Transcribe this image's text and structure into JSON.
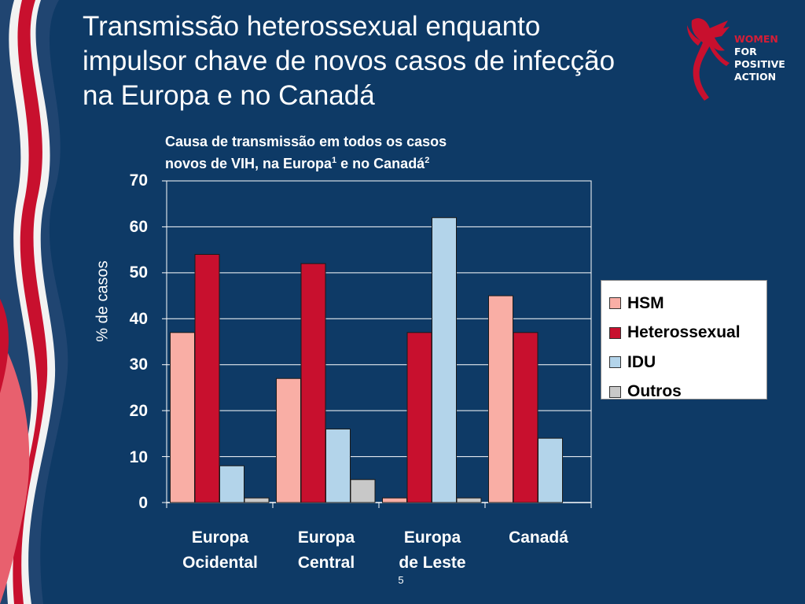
{
  "slide": {
    "title_lines": [
      "Transmissão heterossexual enquanto",
      "impulsor chave de novos casos de infecção",
      "na Europa e no Canadá"
    ],
    "page_number": "5",
    "background_color": "#0e3a66"
  },
  "logo": {
    "lines": [
      "WOMEN",
      "FOR",
      "POSITIVE",
      "ACTION"
    ],
    "accent_color": "#d51d36"
  },
  "chart_data": {
    "type": "bar",
    "title_line1": "Causa de transmissão em todos os casos",
    "title_line2": "novos de VIH, na Europa",
    "title_sup1": "1",
    "title_mid": " e no Canadá",
    "title_sup2": "2",
    "ylabel": "% de casos",
    "ylim": [
      0,
      70
    ],
    "yticks": [
      "70",
      "60",
      "50",
      "40",
      "30",
      "20",
      "10",
      "0"
    ],
    "categories": [
      [
        "Europa",
        "Ocidental"
      ],
      [
        "Europa",
        "Central"
      ],
      [
        "Europa",
        "de Leste"
      ],
      [
        "Canadá"
      ]
    ],
    "series": [
      {
        "name": "HSM",
        "color": "#f9aea5",
        "values": [
          37,
          27,
          1,
          45
        ]
      },
      {
        "name": "Heterossexual",
        "color": "#c8102e",
        "values": [
          54,
          52,
          37,
          37
        ]
      },
      {
        "name": "IDU",
        "color": "#b3d4ea",
        "values": [
          8,
          16,
          62,
          14
        ]
      },
      {
        "name": "Outros",
        "color": "#c8c8c8",
        "values": [
          1,
          5,
          1,
          0
        ]
      }
    ],
    "grid": true,
    "legend_position": "right"
  }
}
